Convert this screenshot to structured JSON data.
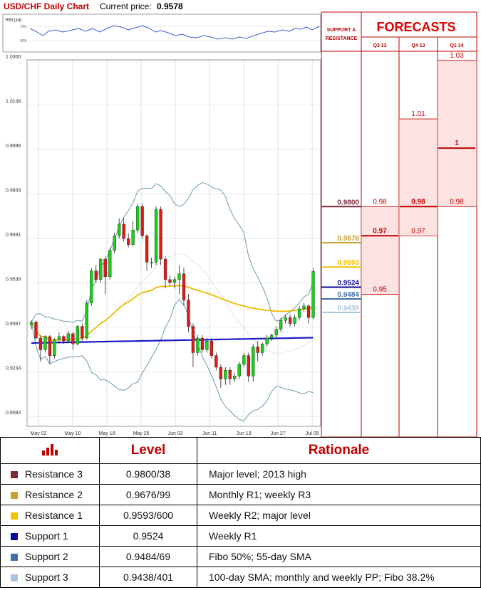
{
  "header": {
    "title": "USD/CHF Daily Chart",
    "price_label": "Current price:",
    "price_value": "0.9578"
  },
  "rsi": {
    "label": "RSI (14)",
    "levels": [
      "70%",
      "50%"
    ]
  },
  "forecast": {
    "title": "FORECASTS",
    "sr_label_line1": "SUPPORT &",
    "sr_label_line2": "RESISTANCE",
    "quarters": [
      "Q3 13",
      "Q4 13",
      "Q1 14"
    ]
  },
  "colors": {
    "resistance3": "#7b2a3a",
    "resistance2": "#c8a033",
    "resistance1": "#f2c200",
    "support1": "#0a0a9c",
    "support2": "#3f6fa8",
    "support3": "#a9c4dc",
    "forecast_red": "#c00000",
    "bull": "#18d118",
    "bear": "#e01818",
    "sma": "#f0b800",
    "sma_long": "#1a1ac8",
    "band": "#5b8fa8"
  },
  "chart_data": {
    "type": "candlestick",
    "title": "USD/CHF Daily Chart",
    "y_ticks": [
      "1.0300",
      "1.0148",
      "0.9996",
      "0.9843",
      "0.9691",
      "0.9539",
      "0.9387",
      "0.9234",
      "0.9082"
    ],
    "ylim": [
      0.9082,
      1.03
    ],
    "x_ticks": [
      "May 02",
      "May 10",
      "May 18",
      "May 26",
      "Jun 03",
      "Jun 11",
      "Jun 19",
      "Jun 27",
      "Jul 05"
    ],
    "candles": [
      [
        0.9395,
        0.9405,
        0.938,
        0.941
      ],
      [
        0.9405,
        0.935,
        0.9345,
        0.941
      ],
      [
        0.935,
        0.931,
        0.927,
        0.936
      ],
      [
        0.931,
        0.9355,
        0.93,
        0.936
      ],
      [
        0.9355,
        0.929,
        0.926,
        0.936
      ],
      [
        0.929,
        0.9345,
        0.928,
        0.935
      ],
      [
        0.9345,
        0.9355,
        0.933,
        0.937
      ],
      [
        0.9355,
        0.934,
        0.933,
        0.936
      ],
      [
        0.934,
        0.9365,
        0.9335,
        0.9375
      ],
      [
        0.9365,
        0.933,
        0.931,
        0.937
      ],
      [
        0.933,
        0.939,
        0.9325,
        0.9395
      ],
      [
        0.939,
        0.935,
        0.934,
        0.94
      ],
      [
        0.935,
        0.947,
        0.9345,
        0.948
      ],
      [
        0.947,
        0.958,
        0.946,
        0.959
      ],
      [
        0.958,
        0.955,
        0.954,
        0.96
      ],
      [
        0.955,
        0.962,
        0.954,
        0.9625
      ],
      [
        0.962,
        0.956,
        0.95,
        0.963
      ],
      [
        0.956,
        0.965,
        0.955,
        0.966
      ],
      [
        0.965,
        0.97,
        0.964,
        0.971
      ],
      [
        0.97,
        0.974,
        0.969,
        0.976
      ],
      [
        0.974,
        0.969,
        0.968,
        0.976
      ],
      [
        0.969,
        0.967,
        0.966,
        0.971
      ],
      [
        0.967,
        0.972,
        0.9665,
        0.975
      ],
      [
        0.972,
        0.98,
        0.971,
        0.981
      ],
      [
        0.98,
        0.97,
        0.969,
        0.981
      ],
      [
        0.97,
        0.961,
        0.958,
        0.9705
      ],
      [
        0.961,
        0.961,
        0.959,
        0.9625
      ],
      [
        0.961,
        0.979,
        0.96,
        0.98
      ],
      [
        0.979,
        0.962,
        0.96,
        0.98
      ],
      [
        0.962,
        0.955,
        0.952,
        0.963
      ],
      [
        0.955,
        0.954,
        0.953,
        0.9565
      ],
      [
        0.954,
        0.955,
        0.952,
        0.956
      ],
      [
        0.955,
        0.957,
        0.95,
        0.96
      ],
      [
        0.957,
        0.948,
        0.946,
        0.959
      ],
      [
        0.948,
        0.939,
        0.937,
        0.95
      ],
      [
        0.939,
        0.93,
        0.925,
        0.94
      ],
      [
        0.93,
        0.935,
        0.929,
        0.936
      ],
      [
        0.935,
        0.931,
        0.93,
        0.936
      ],
      [
        0.931,
        0.934,
        0.93,
        0.935
      ],
      [
        0.934,
        0.929,
        0.928,
        0.935
      ],
      [
        0.929,
        0.925,
        0.924,
        0.93
      ],
      [
        0.925,
        0.921,
        0.918,
        0.926
      ],
      [
        0.921,
        0.924,
        0.919,
        0.925
      ],
      [
        0.924,
        0.921,
        0.919,
        0.925
      ],
      [
        0.921,
        0.922,
        0.92,
        0.923
      ],
      [
        0.922,
        0.926,
        0.921,
        0.927
      ],
      [
        0.926,
        0.929,
        0.925,
        0.93
      ],
      [
        0.929,
        0.922,
        0.92,
        0.93
      ],
      [
        0.922,
        0.932,
        0.92,
        0.933
      ],
      [
        0.932,
        0.93,
        0.927,
        0.934
      ],
      [
        0.93,
        0.933,
        0.929,
        0.9335
      ],
      [
        0.933,
        0.935,
        0.932,
        0.936
      ],
      [
        0.935,
        0.936,
        0.934,
        0.9365
      ],
      [
        0.936,
        0.938,
        0.935,
        0.939
      ],
      [
        0.938,
        0.941,
        0.937,
        0.942
      ],
      [
        0.941,
        0.942,
        0.94,
        0.943
      ],
      [
        0.942,
        0.94,
        0.939,
        0.943
      ],
      [
        0.94,
        0.942,
        0.939,
        0.943
      ],
      [
        0.942,
        0.945,
        0.941,
        0.946
      ],
      [
        0.945,
        0.946,
        0.944,
        0.947
      ],
      [
        0.946,
        0.942,
        0.94,
        0.9465
      ],
      [
        0.942,
        0.9578,
        0.9415,
        0.959
      ]
    ],
    "forecast_columns": {
      "support_resistance": [
        "0.9800",
        "0.9676",
        "0.9593",
        "0.9524",
        "0.9484",
        "0.9438"
      ],
      "Q3 13": [
        "0.98",
        "0.97",
        "0.95"
      ],
      "Q4 13": [
        "1.01",
        "0.98",
        "0.97"
      ],
      "Q1 14": [
        "1.03",
        "1",
        "0.98"
      ]
    }
  },
  "table": {
    "header": {
      "level": "Level",
      "rationale": "Rationale"
    },
    "rows": [
      {
        "name": "Resistance 3",
        "level": "0.9800/38",
        "rationale": "Major level; 2013 high"
      },
      {
        "name": "Resistance 2",
        "level": "0.9676/99",
        "rationale": "Monthly R1; weekly R3"
      },
      {
        "name": "Resistance 1",
        "level": "0.9593/600",
        "rationale": "Weekly R2; major level"
      },
      {
        "name": "Support 1",
        "level": "0.9524",
        "rationale": "Weekly R1"
      },
      {
        "name": "Support 2",
        "level": "0.9484/69",
        "rationale": "Fibo 50%; 55-day SMA"
      },
      {
        "name": "Support 3",
        "level": "0.9438/401",
        "rationale": "100-day SMA; monthly and weekly PP; Fibo 38.2%"
      }
    ]
  }
}
